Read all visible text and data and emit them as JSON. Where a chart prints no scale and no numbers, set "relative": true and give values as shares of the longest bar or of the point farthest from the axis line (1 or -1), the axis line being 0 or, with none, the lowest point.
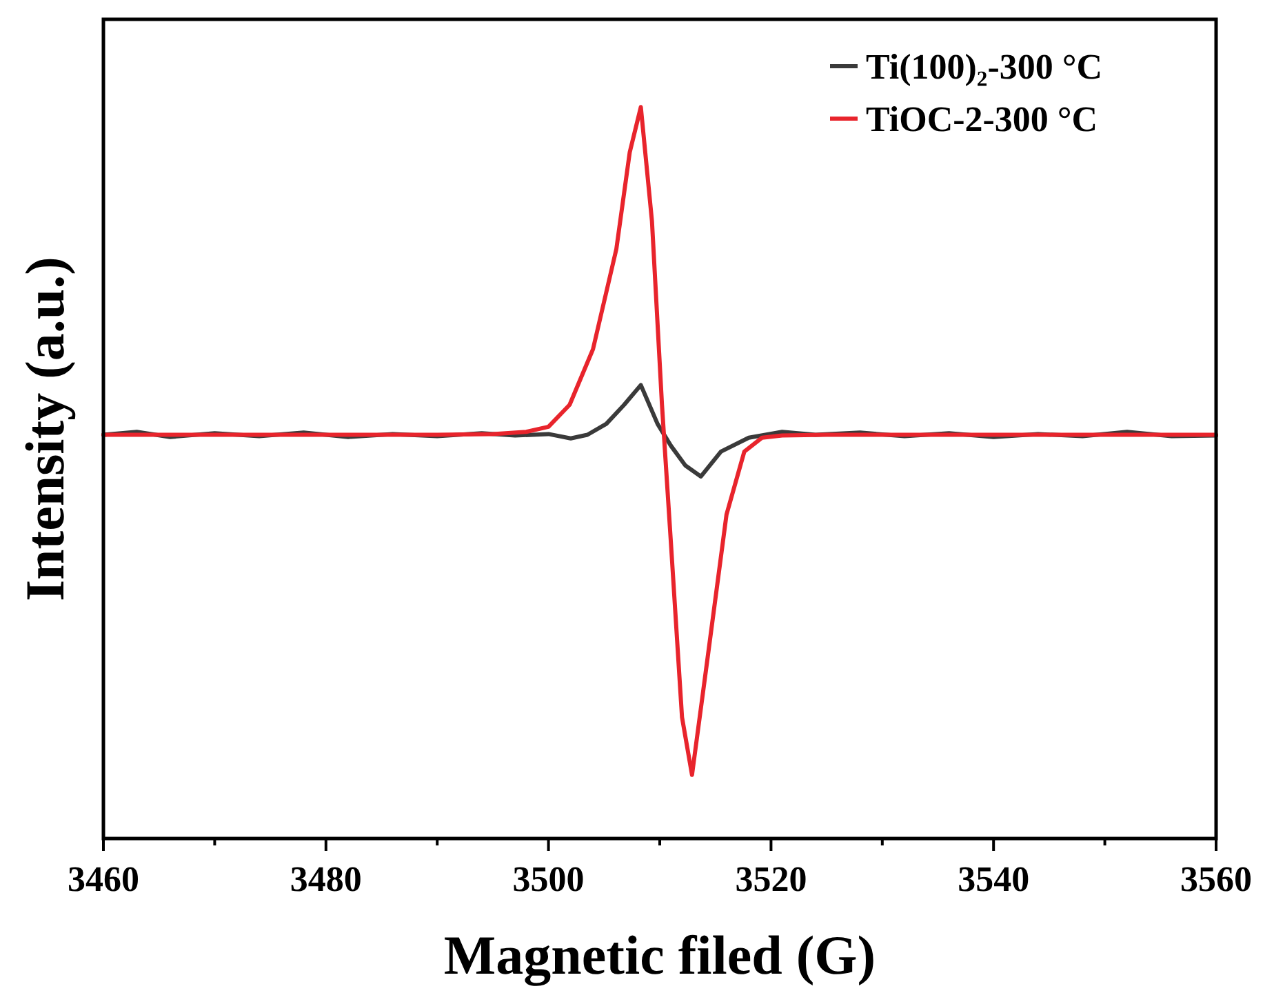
{
  "chart_data": {
    "type": "line",
    "xlabel": "Magnetic filed (G)",
    "ylabel": "Intensity (a.u.)",
    "relative": true,
    "xlim": [
      3460,
      3560
    ],
    "xticks": [
      3460,
      {
        "value": 3470,
        "label": null
      },
      3480,
      {
        "value": 3490,
        "label": null
      },
      3500,
      {
        "value": 3510,
        "label": null
      },
      3520,
      {
        "value": 3530,
        "label": null
      },
      3540,
      {
        "value": 3550,
        "label": null
      },
      3560
    ],
    "tick_labels": "x",
    "legend": "top right",
    "grid": false,
    "line_style": "solid",
    "marker": "none",
    "series": [
      {
        "name": "Ti(100)₂-300 °C",
        "color": "#3a3a3a",
        "x": [
          3460,
          3463,
          3466,
          3470,
          3474,
          3478,
          3482,
          3486,
          3490,
          3494,
          3497,
          3500,
          3502,
          3503.5,
          3505.2,
          3506.8,
          3508.3,
          3509.8,
          3511,
          3512.3,
          3513.7,
          3515.5,
          3518,
          3521,
          3524,
          3528,
          3532,
          3536,
          3540,
          3544,
          3548,
          3552,
          3556,
          3560
        ],
        "values": [
          0.552,
          0.556,
          0.549,
          0.554,
          0.55,
          0.555,
          0.549,
          0.553,
          0.55,
          0.554,
          0.551,
          0.553,
          0.547,
          0.552,
          0.567,
          0.593,
          0.62,
          0.567,
          0.537,
          0.51,
          0.495,
          0.529,
          0.548,
          0.556,
          0.552,
          0.555,
          0.55,
          0.554,
          0.549,
          0.553,
          0.55,
          0.556,
          0.55,
          0.551
        ]
      },
      {
        "name": "TiOC-2-300 °C",
        "color": "#e8242c",
        "x": [
          3460,
          3470,
          3480,
          3490,
          3495,
          3498,
          3500,
          3501.9,
          3504,
          3506.1,
          3507.3,
          3508.3,
          3509.3,
          3510.2,
          3511,
          3512,
          3512.9,
          3514.3,
          3516,
          3517.6,
          3519.2,
          3521,
          3525,
          3530,
          3540,
          3550,
          3560
        ],
        "values": [
          0.552,
          0.552,
          0.552,
          0.552,
          0.553,
          0.556,
          0.563,
          0.593,
          0.669,
          0.806,
          0.938,
          1,
          0.844,
          0.593,
          0.405,
          0.166,
          0.087,
          0.247,
          0.443,
          0.529,
          0.548,
          0.551,
          0.552,
          0.552,
          0.552,
          0.552,
          0.552
        ]
      }
    ]
  }
}
